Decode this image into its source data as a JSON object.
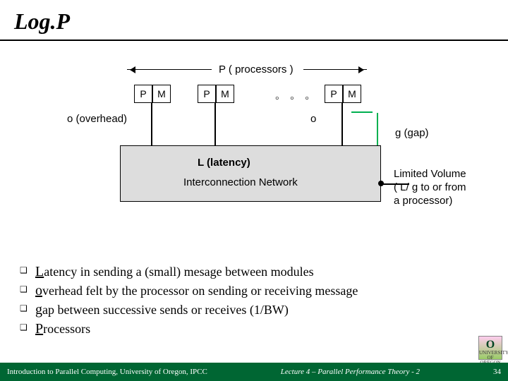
{
  "title": "Log.P",
  "diagram": {
    "processors_label": "P  ( processors )",
    "box_p": "P",
    "box_m": "M",
    "overhead_left": "o (overhead)",
    "overhead_right": "o",
    "latency": "L (latency)",
    "network": "Interconnection Network",
    "gap": "g (gap)",
    "limited_l1": "Limited Volume",
    "limited_l2": "( L/ g  to or from",
    "limited_l3": "     a processor)",
    "colors": {
      "gap_bracket": "#00b050",
      "network_bg": "#dddddd",
      "footer_bg": "#006633"
    }
  },
  "bullets": {
    "b1_first": "L",
    "b1_rest": "atency in sending a (small) mesage between modules",
    "b2_first": "o",
    "b2_rest": "verhead felt by the processor on sending or receiving message",
    "b3_first": "g",
    "b3_rest": "ap between successive sends or receives (1/BW)",
    "b4_first": "P",
    "b4_rest": "rocessors"
  },
  "footer": {
    "left": "Introduction to Parallel Computing, University of Oregon, IPCC",
    "mid": "Lecture 4 – Parallel Performance Theory - 2",
    "page": "34"
  },
  "logo": {
    "top": "UNIVERSITY",
    "mid": "OF OREGON"
  }
}
